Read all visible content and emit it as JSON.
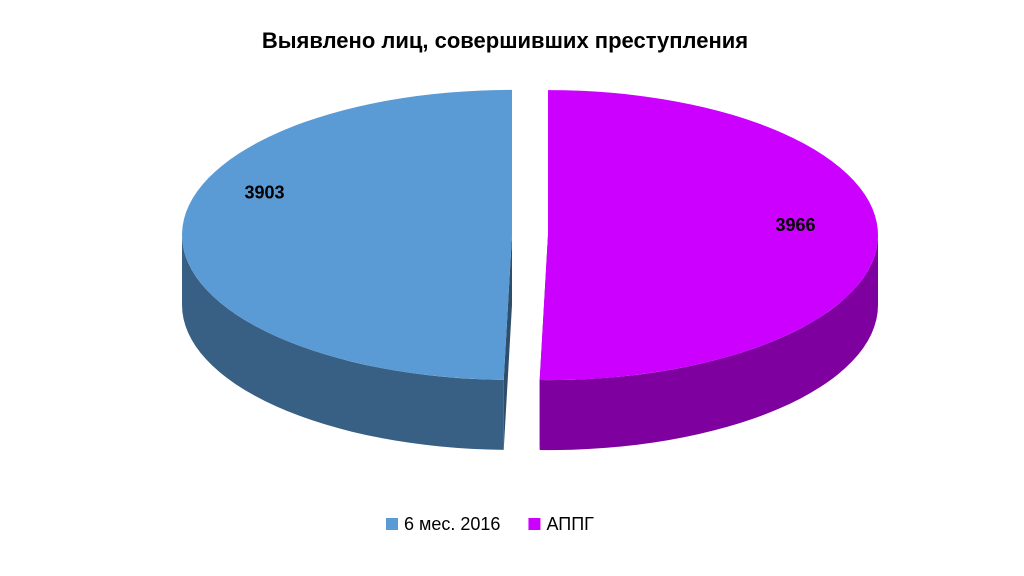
{
  "chart_data": {
    "type": "pie",
    "title": "Выявлено лиц, совершивших преступления",
    "categories": [
      "6 мес. 2016",
      "АППГ"
    ],
    "values": [
      3903,
      3966
    ],
    "colors": [
      "#5b9bd5",
      "#cc00ff"
    ],
    "legend": "bottom"
  }
}
